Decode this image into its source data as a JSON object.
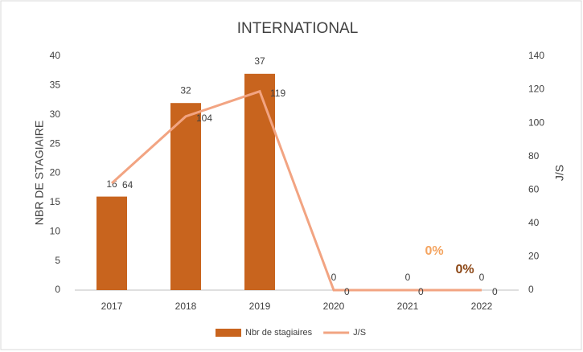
{
  "chart_data": {
    "type": "bar",
    "title": "INTERNATIONAL",
    "categories": [
      "2017",
      "2018",
      "2019",
      "2020",
      "2021",
      "2022"
    ],
    "series": [
      {
        "name": "Nbr de stagiaires",
        "type": "bar",
        "color": "#c8641e",
        "values": [
          16,
          32,
          37,
          0,
          0,
          0
        ]
      },
      {
        "name": "J/S",
        "type": "line",
        "axis": "y2",
        "color": "#f2a482",
        "values": [
          64,
          104,
          119,
          0,
          0,
          0
        ]
      }
    ],
    "ylabel": "NBR DE STAGIAIRE",
    "y2label": "J/S",
    "ylim": [
      0,
      40
    ],
    "yticks": [
      0,
      5,
      10,
      15,
      20,
      25,
      30,
      35,
      40
    ],
    "y2lim": [
      0,
      140
    ],
    "y2ticks": [
      0,
      20,
      40,
      60,
      80,
      100,
      120,
      140
    ],
    "annotations": [
      {
        "text": "0%",
        "color": "#f4a460"
      },
      {
        "text": "0%",
        "color": "#8b4513"
      }
    ],
    "legend": "bottom",
    "grid": false
  }
}
